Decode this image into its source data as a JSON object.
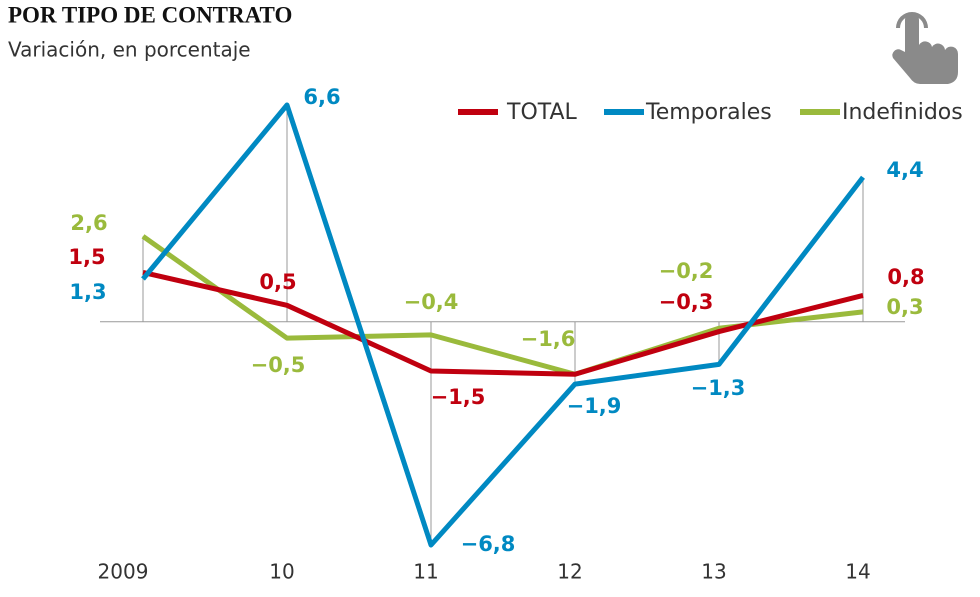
{
  "chart_data": {
    "type": "line",
    "title": "POR TIPO DE CONTRATO",
    "subtitle": "Variación, en porcentaje",
    "categories": [
      "2009",
      "10",
      "11",
      "12",
      "13",
      "14"
    ],
    "series": [
      {
        "name": "TOTAL",
        "color": "#c0000f",
        "values": [
          1.5,
          0.5,
          -1.5,
          -1.6,
          -0.3,
          0.8
        ],
        "value_labels": [
          "1,5",
          "0,5",
          "−1,5",
          null,
          "−0,3",
          "0,8"
        ]
      },
      {
        "name": "Temporales",
        "color": "#0089c2",
        "values": [
          1.3,
          6.6,
          -6.8,
          -1.9,
          -1.3,
          4.4
        ],
        "value_labels": [
          "1,3",
          "6,6",
          "−6,8",
          "−1,9",
          "−1,3",
          "4,4"
        ]
      },
      {
        "name": "Indefinidos",
        "color": "#9aba3c",
        "values": [
          2.6,
          -0.5,
          -0.4,
          -1.6,
          -0.2,
          0.3
        ],
        "value_labels": [
          "2,6",
          "−0,5",
          "−0,4",
          "−1,6",
          "−0,2",
          "0,3"
        ]
      }
    ]
  }
}
